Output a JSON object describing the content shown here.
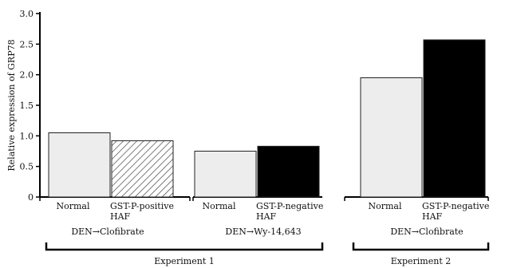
{
  "chart_data": {
    "type": "bar",
    "ylabel": "Relative expression of GRP78",
    "ylim": [
      0,
      3.0
    ],
    "yticks": [
      "0",
      "0.5",
      "1.0",
      "1.5",
      "2.0",
      "2.5",
      "3.0"
    ],
    "bars": [
      {
        "label": "Normal",
        "value": 1.05,
        "fill": "light"
      },
      {
        "label": "GST-P-positive HAF",
        "value": 0.92,
        "fill": "hatched"
      },
      {
        "label": "Normal",
        "value": 0.75,
        "fill": "light"
      },
      {
        "label": "GST-P-negative HAF",
        "value": 0.83,
        "fill": "black"
      },
      {
        "label": "Normal",
        "value": 1.95,
        "fill": "light"
      },
      {
        "label": "GST-P-negative HAF",
        "value": 2.57,
        "fill": "black"
      }
    ],
    "treatments": [
      "DEN→Clofibrate",
      "DEN→Wy-14,643",
      "DEN→Clofibrate"
    ],
    "experiments": [
      "Experiment 1",
      "Experiment 2"
    ]
  },
  "colors": {
    "light": "#ededed",
    "black": "#000000",
    "stroke": "#222222"
  }
}
